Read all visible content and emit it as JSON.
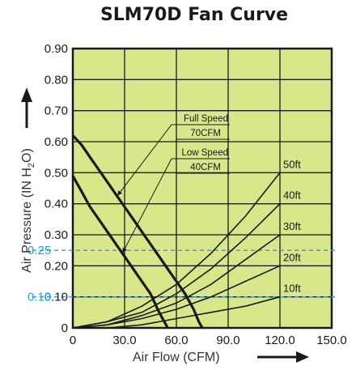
{
  "chart_data": {
    "type": "line",
    "title": "SLM70D Fan Curve",
    "xlabel": "Air Flow (CFM)",
    "ylabel_parts": [
      "Air Pressure (IN H",
      "2",
      "O)"
    ],
    "xlim": [
      0,
      150
    ],
    "ylim": [
      0,
      0.9
    ],
    "x_ticks": [
      {
        "value": 0,
        "label": "0"
      },
      {
        "value": 30,
        "label": "30.0"
      },
      {
        "value": 60,
        "label": "60.0"
      },
      {
        "value": 90,
        "label": "90.0"
      },
      {
        "value": 120,
        "label": "120.0"
      },
      {
        "value": 150,
        "label": "150.0"
      }
    ],
    "y_ticks": [
      {
        "value": 0,
        "label": "0"
      },
      {
        "value": 0.1,
        "label": "0.10"
      },
      {
        "value": 0.2,
        "label": "0.20"
      },
      {
        "value": 0.3,
        "label": "0.30"
      },
      {
        "value": 0.4,
        "label": "0.40"
      },
      {
        "value": 0.5,
        "label": "0.50"
      },
      {
        "value": 0.6,
        "label": "0.60"
      },
      {
        "value": 0.7,
        "label": "0.70"
      },
      {
        "value": 0.8,
        "label": "0.80"
      },
      {
        "value": 0.9,
        "label": "0.90"
      }
    ],
    "grid": true,
    "plot_background": "#d9e68a",
    "fan_curves": [
      {
        "name": "Full Speed 70CFM",
        "label_lines": [
          "Full Speed",
          "70CFM"
        ],
        "color": "#1a1a1a",
        "x": [
          0,
          5,
          10,
          15,
          20,
          25,
          30,
          35,
          40,
          45,
          50,
          55,
          60,
          65,
          70,
          73,
          75
        ],
        "y": [
          0.62,
          0.59,
          0.55,
          0.51,
          0.47,
          0.43,
          0.39,
          0.35,
          0.31,
          0.27,
          0.23,
          0.19,
          0.15,
          0.11,
          0.06,
          0.02,
          0.0
        ]
      },
      {
        "name": "Low Speed 40CFM",
        "label_lines": [
          "Low Speed",
          "40CFM"
        ],
        "color": "#1a1a1a",
        "x": [
          0,
          5,
          10,
          15,
          20,
          25,
          30,
          35,
          40,
          45,
          50,
          53,
          55
        ],
        "y": [
          0.49,
          0.44,
          0.39,
          0.35,
          0.31,
          0.27,
          0.23,
          0.19,
          0.15,
          0.11,
          0.05,
          0.02,
          0.0
        ]
      }
    ],
    "system_curves": [
      {
        "label": "50ft",
        "color": "#1a1a1a",
        "x": [
          0,
          20,
          40,
          60,
          80,
          100,
          120
        ],
        "y": [
          0.0,
          0.02,
          0.07,
          0.14,
          0.24,
          0.36,
          0.5
        ]
      },
      {
        "label": "40ft",
        "color": "#1a1a1a",
        "x": [
          0,
          20,
          40,
          60,
          80,
          100,
          120
        ],
        "y": [
          0.0,
          0.02,
          0.05,
          0.11,
          0.19,
          0.29,
          0.4
        ]
      },
      {
        "label": "30ft",
        "color": "#1a1a1a",
        "x": [
          0,
          20,
          40,
          60,
          80,
          100,
          120
        ],
        "y": [
          0.0,
          0.01,
          0.04,
          0.08,
          0.14,
          0.22,
          0.3
        ]
      },
      {
        "label": "20ft",
        "color": "#1a1a1a",
        "x": [
          0,
          20,
          40,
          60,
          80,
          100,
          120
        ],
        "y": [
          0.0,
          0.01,
          0.03,
          0.06,
          0.1,
          0.15,
          0.2
        ]
      },
      {
        "label": "10ft",
        "color": "#1a1a1a",
        "x": [
          0,
          20,
          40,
          60,
          80,
          100,
          120
        ],
        "y": [
          0.0,
          0.0,
          0.01,
          0.03,
          0.05,
          0.07,
          0.1
        ]
      }
    ],
    "reference_lines": [
      {
        "y": 0.25,
        "label": "0.25",
        "color": "#2a9fd6",
        "style": "dashed"
      },
      {
        "y": 0.1,
        "label": "0.10",
        "color": "#2a9fd6",
        "style": "dashed"
      }
    ]
  }
}
